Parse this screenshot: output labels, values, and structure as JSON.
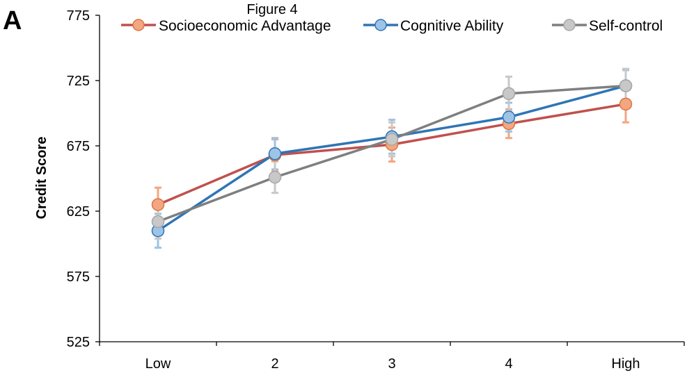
{
  "chart_data": {
    "type": "line",
    "title": "Figure 4",
    "panel_label": "A",
    "xlabel": "",
    "ylabel": "Credit Score",
    "categories": [
      "Low",
      "2",
      "3",
      "4",
      "High"
    ],
    "ylim": [
      525,
      775
    ],
    "yticks": [
      525,
      575,
      625,
      675,
      725,
      775
    ],
    "grid": false,
    "legend_position": "top",
    "series": [
      {
        "name": "Socioeconomic Advantage",
        "line_color": "#c0504d",
        "marker_fill": "#f4a582",
        "marker_stroke": "#d9773f",
        "error_color": "#f4a582",
        "values": [
          630,
          668,
          676,
          692,
          707
        ],
        "error": [
          13,
          12,
          13,
          11,
          14
        ]
      },
      {
        "name": "Cognitive Ability",
        "line_color": "#2e75b6",
        "marker_fill": "#9dc3e6",
        "marker_stroke": "#2e75b6",
        "error_color": "#9dc3e6",
        "values": [
          610,
          669,
          682,
          697,
          721
        ],
        "error": [
          13,
          12,
          13,
          11,
          12
        ]
      },
      {
        "name": "Self-control",
        "line_color": "#7f7f7f",
        "marker_fill": "#c8c8c8",
        "marker_stroke": "#a6a6a6",
        "error_color": "#c8c8c8",
        "values": [
          617,
          651,
          680,
          715,
          721
        ],
        "error": [
          13,
          12,
          13,
          13,
          13
        ]
      }
    ]
  }
}
